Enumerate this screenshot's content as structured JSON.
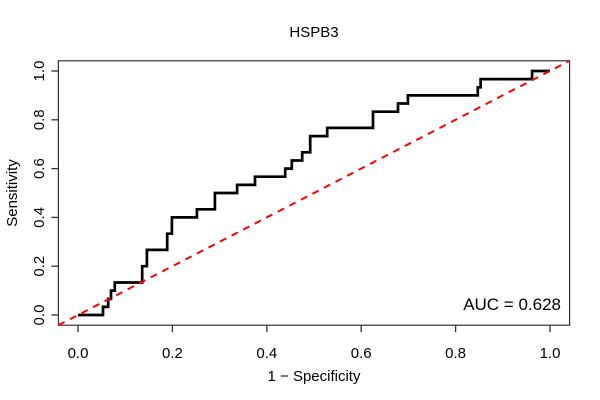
{
  "figure": {
    "background": "#ffffff",
    "frame_color": "#333333",
    "text_color": "#000000"
  },
  "chart_data": {
    "type": "line",
    "subtype": "roc-step-curve",
    "title": "HSPB3",
    "xlabel": "1 − Specificity",
    "ylabel": "Sensitivity",
    "annotation": "AUC = 0.628",
    "auc": 0.628,
    "xlim": [
      0.0,
      1.0
    ],
    "ylim": [
      0.0,
      1.0
    ],
    "grid": false,
    "legend": null,
    "xticks": [
      0.0,
      0.2,
      0.4,
      0.6,
      0.8,
      1.0
    ],
    "xtick_labels": [
      "0.0",
      "0.2",
      "0.4",
      "0.6",
      "0.8",
      "1.0"
    ],
    "yticks": [
      0.0,
      0.2,
      0.4,
      0.6,
      0.8,
      1.0
    ],
    "ytick_labels": [
      "0.0",
      "0.2",
      "0.4",
      "0.6",
      "0.8",
      "1.0"
    ],
    "series": [
      {
        "name": "ROC curve",
        "color": "#000000",
        "style": "solid",
        "width": 2.7,
        "extend_to_plot_corners": false,
        "points": [
          [
            0.0,
            0.0
          ],
          [
            0.053,
            0.0
          ],
          [
            0.053,
            0.033
          ],
          [
            0.064,
            0.033
          ],
          [
            0.064,
            0.066
          ],
          [
            0.07,
            0.066
          ],
          [
            0.07,
            0.1
          ],
          [
            0.078,
            0.1
          ],
          [
            0.078,
            0.133
          ],
          [
            0.136,
            0.133
          ],
          [
            0.136,
            0.2
          ],
          [
            0.146,
            0.2
          ],
          [
            0.146,
            0.267
          ],
          [
            0.189,
            0.267
          ],
          [
            0.189,
            0.333
          ],
          [
            0.199,
            0.333
          ],
          [
            0.199,
            0.4
          ],
          [
            0.252,
            0.4
          ],
          [
            0.252,
            0.433
          ],
          [
            0.29,
            0.433
          ],
          [
            0.29,
            0.5
          ],
          [
            0.337,
            0.5
          ],
          [
            0.337,
            0.533
          ],
          [
            0.375,
            0.533
          ],
          [
            0.375,
            0.567
          ],
          [
            0.439,
            0.567
          ],
          [
            0.439,
            0.6
          ],
          [
            0.453,
            0.6
          ],
          [
            0.453,
            0.633
          ],
          [
            0.475,
            0.633
          ],
          [
            0.475,
            0.667
          ],
          [
            0.492,
            0.667
          ],
          [
            0.492,
            0.733
          ],
          [
            0.528,
            0.733
          ],
          [
            0.528,
            0.767
          ],
          [
            0.625,
            0.767
          ],
          [
            0.625,
            0.833
          ],
          [
            0.678,
            0.833
          ],
          [
            0.678,
            0.867
          ],
          [
            0.699,
            0.867
          ],
          [
            0.699,
            0.9
          ],
          [
            0.847,
            0.9
          ],
          [
            0.847,
            0.933
          ],
          [
            0.853,
            0.933
          ],
          [
            0.853,
            0.967
          ],
          [
            0.962,
            0.967
          ],
          [
            0.962,
            1.0
          ],
          [
            1.0,
            1.0
          ]
        ]
      },
      {
        "name": "Chance diagonal",
        "color": "#ff0000",
        "style": "dashed",
        "width": 2,
        "extend_to_plot_corners": true,
        "points": [
          [
            0.0,
            0.0
          ],
          [
            1.0,
            1.0
          ]
        ]
      }
    ]
  }
}
